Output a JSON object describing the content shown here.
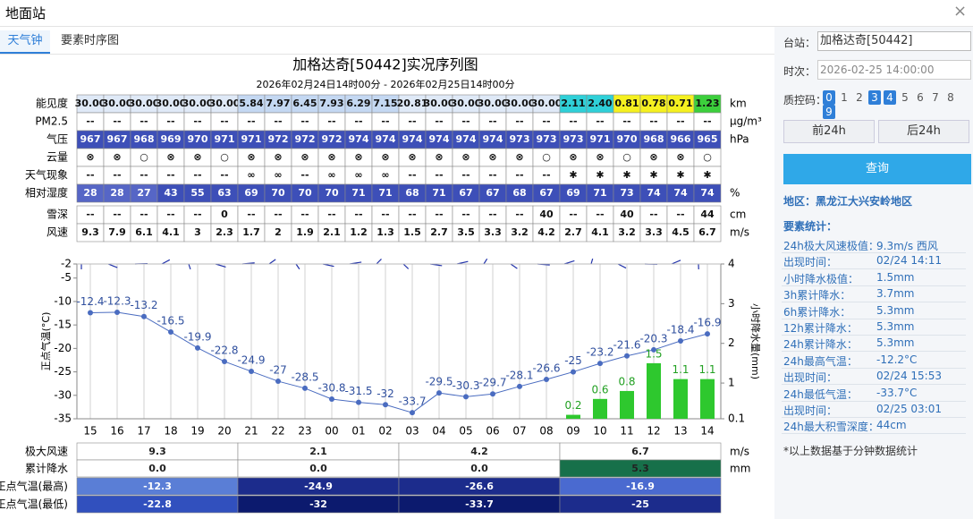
{
  "header": {
    "title": "地面站",
    "close": "×"
  },
  "tabs": [
    "天气钟",
    "要素时序图"
  ],
  "title": "加格达奇[50442]实况序列图",
  "subtitle": "2026年02月24日14时00分 - 2026年02月25日14时00分",
  "table": {
    "rows": [
      {
        "label": "能见度",
        "unit": "km",
        "values": [
          "30.00",
          "30.00",
          "30.00",
          "30.00",
          "30.00",
          "30.00",
          "5.84",
          "7.97",
          "6.45",
          "7.93",
          "6.29",
          "7.15",
          "20.81",
          "30.00",
          "30.00",
          "30.00",
          "30.00",
          "30.00",
          "2.11",
          "2.40",
          "0.81",
          "0.78",
          "0.71",
          "1.23"
        ],
        "colors": [
          "#dfe9f7",
          "#dfe9f7",
          "#dfe9f7",
          "#dfe9f7",
          "#dfe9f7",
          "#dfe9f7",
          "#c4d8f2",
          "#c4d8f2",
          "#c4d8f2",
          "#c4d8f2",
          "#c4d8f2",
          "#c4d8f2",
          "#dfe9f7",
          "#dfe9f7",
          "#dfe9f7",
          "#dfe9f7",
          "#dfe9f7",
          "#dfe9f7",
          "#2fd0d8",
          "#2fd0d8",
          "#f5f020",
          "#f5f020",
          "#f5f020",
          "#3ccf3c"
        ]
      },
      {
        "label": "PM2.5",
        "unit": "μg/m³",
        "values": [
          "--",
          "--",
          "--",
          "--",
          "--",
          "--",
          "--",
          "--",
          "--",
          "--",
          "--",
          "--",
          "--",
          "--",
          "--",
          "--",
          "--",
          "--",
          "--",
          "--",
          "--",
          "--",
          "--",
          "--"
        ]
      },
      {
        "label": "气压",
        "unit": "hPa",
        "color": "#3d4fb8",
        "text_color": "#ffffff",
        "values": [
          967,
          967,
          968,
          969,
          970,
          971,
          971,
          972,
          972,
          972,
          974,
          974,
          974,
          974,
          974,
          974,
          973,
          973,
          973,
          971,
          970,
          968,
          966,
          965
        ]
      },
      {
        "label": "云量",
        "values": [
          "⊗",
          "⊗",
          "○",
          "⊗",
          "⊗",
          "○",
          "⊗",
          "⊗",
          "⊗",
          "⊗",
          "⊗",
          "⊗",
          "⊗",
          "⊗",
          "⊗",
          "⊗",
          "⊗",
          "○",
          "⊗",
          "⊗",
          "○",
          "⊗",
          "⊗",
          "○"
        ]
      },
      {
        "label": "天气现象",
        "values": [
          "--",
          "--",
          "--",
          "--",
          "--",
          "--",
          "∞",
          "∞",
          "--",
          "∞",
          "∞",
          "∞",
          "--",
          "--",
          "--",
          "--",
          "--",
          "--",
          "✱",
          "✱",
          "✱",
          "✱",
          "✱",
          "✱"
        ]
      },
      {
        "label": "相对湿度",
        "unit": "%",
        "color": "#3d4fb8",
        "text_color": "#ffffff",
        "colors": [
          "#5666c6",
          "#5666c6",
          "#5666c6"
        ],
        "values": [
          28,
          28,
          27,
          43,
          55,
          63,
          69,
          70,
          70,
          70,
          71,
          71,
          68,
          71,
          67,
          67,
          68,
          67,
          69,
          71,
          73,
          74,
          74,
          74
        ]
      },
      {
        "label": "雪深",
        "unit": "cm",
        "values": [
          "--",
          "--",
          "--",
          "--",
          "--",
          0,
          "--",
          "--",
          "--",
          "--",
          "--",
          "--",
          "--",
          "--",
          "--",
          "--",
          "--",
          40,
          "--",
          "--",
          40,
          "--",
          "--",
          44
        ]
      },
      {
        "label": "风速",
        "unit": "m/s",
        "values": [
          9.3,
          7.9,
          6.1,
          4.1,
          3,
          2.3,
          1.7,
          2,
          1.9,
          2.1,
          1.2,
          1.3,
          1.5,
          2.7,
          3.5,
          3.3,
          3.2,
          4.2,
          2.7,
          4.1,
          3.2,
          3.3,
          4.5,
          6.7
        ]
      }
    ]
  },
  "chart_data": {
    "type": "line",
    "categories": [
      "15",
      "16",
      "17",
      "18",
      "19",
      "20",
      "21",
      "22",
      "23",
      "00",
      "01",
      "02",
      "03",
      "04",
      "05",
      "06",
      "07",
      "08",
      "09",
      "10",
      "11",
      "12",
      "13",
      "14"
    ],
    "ylabel": "正点气温(°C)",
    "y2label": "小时降水量(mm)",
    "ylim": [
      -35,
      -2
    ],
    "yticks": [
      -35,
      -30,
      -25,
      -20,
      -15,
      -10,
      -5,
      -2
    ],
    "y2lim": [
      0.1,
      4
    ],
    "y2ticks": [
      0.1,
      1,
      2,
      3,
      4
    ],
    "series": [
      {
        "type": "line",
        "color": "#4a6cc0",
        "values": [
          -12.4,
          -12.3,
          -13.2,
          -16.5,
          -19.9,
          -22.8,
          -24.9,
          -27,
          -28.5,
          -30.8,
          -31.5,
          -32,
          -33.7,
          -29.5,
          -30.3,
          -29.7,
          -28.1,
          -26.6,
          -25,
          -23.2,
          -21.6,
          -20.3,
          -18.4,
          -16.9
        ]
      },
      {
        "type": "bar",
        "axis": "y2",
        "color": "#2ec82e",
        "values": [
          null,
          null,
          null,
          null,
          null,
          null,
          null,
          null,
          null,
          null,
          null,
          null,
          null,
          null,
          null,
          null,
          null,
          null,
          0.2,
          0.6,
          0.8,
          1.5,
          1.1,
          1.1
        ]
      }
    ]
  },
  "summary": {
    "rows": [
      {
        "label": "极大风速",
        "unit": "m/s",
        "values": [
          "9.3",
          "2.1",
          "4.2",
          "6.7"
        ]
      },
      {
        "label": "累计降水",
        "unit": "mm",
        "values": [
          "0.0",
          "0.0",
          "0.0",
          "5.3"
        ],
        "colors": [
          "#ffffff",
          "#ffffff",
          "#ffffff",
          "#17704a"
        ]
      },
      {
        "label": "正点气温(最高)",
        "values": [
          "-12.3",
          "-24.9",
          "-26.6",
          "-16.9"
        ],
        "colors": [
          "#5a7ed6",
          "#1c2c8c",
          "#1c2c8c",
          "#4a6ad0"
        ],
        "text_color": "#ffffff"
      },
      {
        "label": "正点气温(最低)",
        "values": [
          "-22.8",
          "-32",
          "-33.7",
          "-25"
        ],
        "colors": [
          "#3150be",
          "#0c1a6e",
          "#0c1a6e",
          "#1c2c8c"
        ],
        "text_color": "#ffffff"
      }
    ]
  },
  "panel": {
    "station_label": "台站：",
    "station": "加格达奇[50442]",
    "time_label": "时次：",
    "time": "2026-02-25 14:00:00",
    "qc_label": "质控码：",
    "qc_codes": [
      0,
      1,
      2,
      3,
      4,
      5,
      6,
      7,
      8,
      9
    ],
    "qc_selected": [
      true,
      false,
      false,
      true,
      true,
      false,
      false,
      false,
      false,
      true
    ],
    "prev": "前24h",
    "next": "后24h",
    "query": "查询",
    "region": "地区：黑龙江大兴安岭地区",
    "stats_title": "要素统计：",
    "stats": [
      {
        "label": "24h极大风速极值：",
        "value": "9.3m/s 西风"
      },
      {
        "label": "出现时间：",
        "value": "02/24 14:11"
      },
      {
        "label": "小时降水极值：",
        "value": "1.5mm"
      },
      {
        "label": "3h累计降水：",
        "value": "3.7mm"
      },
      {
        "label": "6h累计降水：",
        "value": "5.3mm"
      },
      {
        "label": "12h累计降水：",
        "value": "5.3mm"
      },
      {
        "label": "24h累计降水：",
        "value": "5.3mm"
      },
      {
        "label": "24h最高气温：",
        "value": "-12.2°C"
      },
      {
        "label": "出现时间：",
        "value": "02/24 15:53"
      },
      {
        "label": "24h最低气温：",
        "value": "-33.7°C"
      },
      {
        "label": "出现时间：",
        "value": "02/25 03:01"
      },
      {
        "label": "24h最大积雪深度：",
        "value": "44cm"
      }
    ],
    "note": "*以上数据基于分钟数据统计"
  }
}
